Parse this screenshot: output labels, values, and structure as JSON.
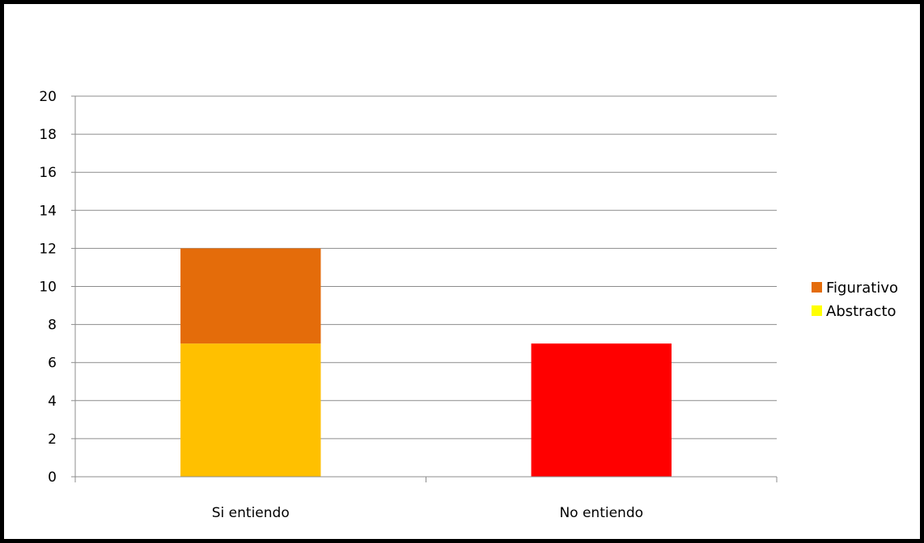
{
  "chart_data": {
    "type": "bar",
    "stacked": true,
    "title": "",
    "xlabel": "",
    "ylabel": "",
    "ylim": [
      0,
      20
    ],
    "yticks": [
      0,
      2,
      4,
      6,
      8,
      10,
      12,
      14,
      16,
      18,
      20
    ],
    "grid": true,
    "legend_position": "right",
    "categories": [
      "Si entiendo",
      "No entiendo"
    ],
    "series": [
      {
        "name": "Abstracto",
        "values": [
          7,
          null
        ],
        "color": "#FFC000",
        "legend_color": "#FFFF00"
      },
      {
        "name": "Figurativo",
        "values": [
          5,
          null
        ],
        "color": "#E46C0A",
        "legend_color": "#E46C0A"
      },
      {
        "name": "",
        "values": [
          null,
          7
        ],
        "color": "#FF0000"
      }
    ],
    "legend": [
      {
        "label": "Figurativo",
        "color": "#E46C0A"
      },
      {
        "label": "Abstracto",
        "color": "#FFFF00"
      }
    ]
  }
}
